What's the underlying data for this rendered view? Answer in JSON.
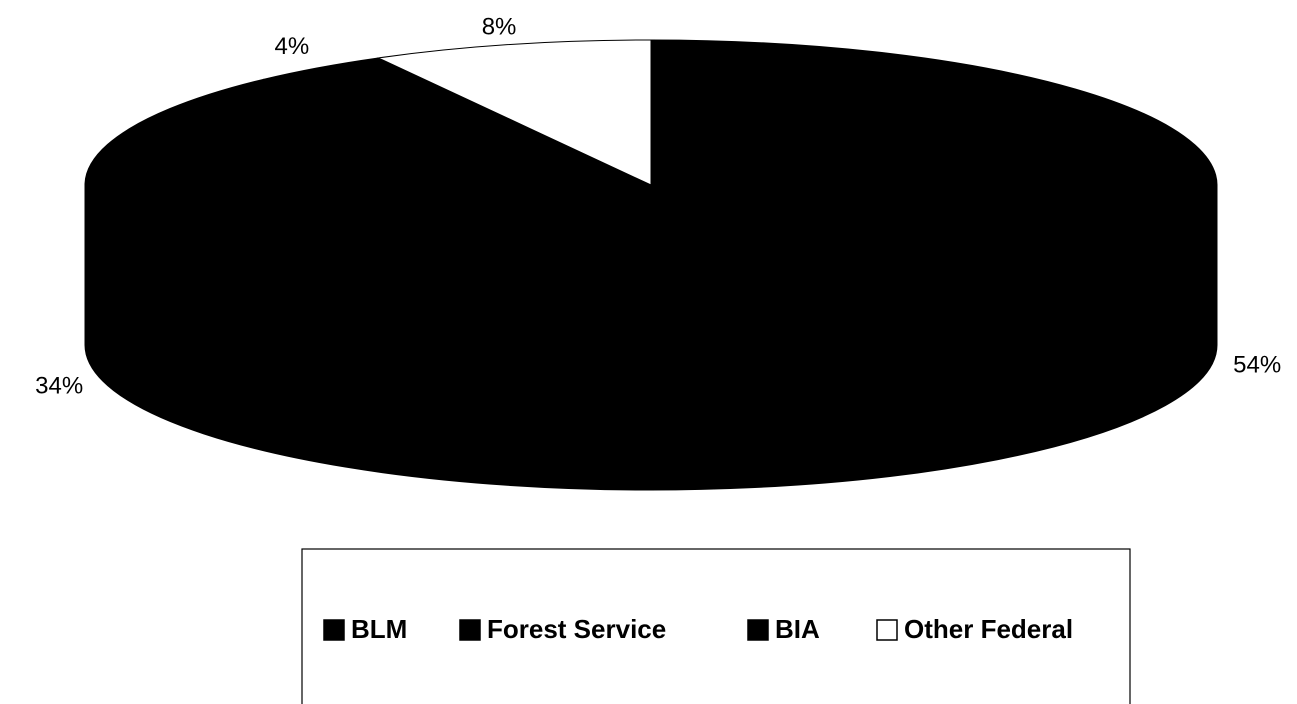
{
  "chart_data": {
    "type": "pie",
    "style": "3d",
    "title": "",
    "categories": [
      "BLM",
      "Forest Service",
      "BIA",
      "Other Federal"
    ],
    "values": [
      54,
      34,
      4,
      8
    ],
    "labels": [
      "54%",
      "34%",
      "4%",
      "8%"
    ],
    "colors": [
      "#000000",
      "#000000",
      "#000000",
      "#ffffff"
    ],
    "legend": "bottom",
    "legend_entries": [
      {
        "name": "BLM",
        "swatch_color": "#000000"
      },
      {
        "name": "Forest Service",
        "swatch_color": "#000000"
      },
      {
        "name": "BIA",
        "swatch_color": "#000000"
      },
      {
        "name": "Other Federal",
        "swatch_color": "#ffffff"
      }
    ]
  }
}
